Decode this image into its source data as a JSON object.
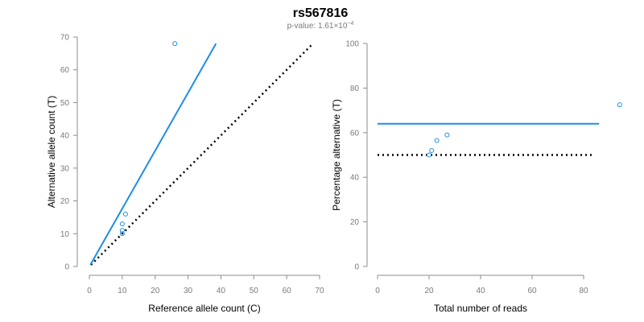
{
  "header": {
    "title": "rs567816",
    "pvalue_prefix": "p-value: 1.61",
    "pvalue_mult": "×",
    "pvalue_base": "10",
    "pvalue_exp": "−4"
  },
  "colors": {
    "fit": "#1f8ee0",
    "reference": "#000000",
    "points": "#1f8ee0",
    "axis": "#8c8c8c"
  },
  "chart_data": [
    {
      "type": "scatter",
      "xlabel": "Reference allele count (C)",
      "ylabel": "Alternative allele count (T)",
      "xlim": [
        0,
        70
      ],
      "ylim": [
        0,
        70
      ],
      "xticks": [
        0,
        10,
        20,
        30,
        40,
        50,
        60,
        70
      ],
      "yticks": [
        0,
        10,
        20,
        30,
        40,
        50,
        60,
        70
      ],
      "points": [
        [
          10,
          11
        ],
        [
          10,
          10
        ],
        [
          10,
          13
        ],
        [
          11,
          16
        ],
        [
          26,
          68
        ]
      ],
      "fit_line": [
        [
          0.3,
          0.5
        ],
        [
          38.5,
          68
        ]
      ],
      "reference_line": [
        [
          0.5,
          0.5
        ],
        [
          67.5,
          67.5
        ]
      ],
      "grid": false
    },
    {
      "type": "scatter",
      "xlabel": "Total number of reads",
      "ylabel": "Percentage alternative (T)",
      "xlim": [
        0,
        90
      ],
      "ylim": [
        0,
        100
      ],
      "xticks": [
        0,
        20,
        40,
        60,
        80
      ],
      "yticks": [
        0,
        20,
        40,
        60,
        80,
        100
      ],
      "points": [
        [
          20,
          50
        ],
        [
          21,
          52
        ],
        [
          23,
          56.5
        ],
        [
          27,
          59
        ],
        [
          94,
          72.5
        ]
      ],
      "fit_line": [
        [
          0,
          64
        ],
        [
          86,
          64
        ]
      ],
      "reference_line": [
        [
          0,
          50
        ],
        [
          84,
          50
        ]
      ],
      "grid": false
    }
  ]
}
